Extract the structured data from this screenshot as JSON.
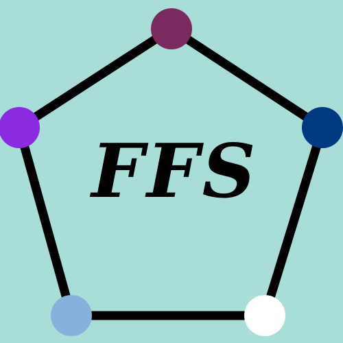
{
  "logo": {
    "text": "FFS",
    "background_color": "#a8ddd8",
    "edge_color": "#000000",
    "text_color": "#000000",
    "nodes": [
      {
        "name": "top",
        "color": "#7a2a5e"
      },
      {
        "name": "right",
        "color": "#003a80"
      },
      {
        "name": "bottom-right",
        "color": "#ffffff"
      },
      {
        "name": "bottom-left",
        "color": "#88b0dd"
      },
      {
        "name": "left",
        "color": "#8a2be2"
      }
    ]
  }
}
